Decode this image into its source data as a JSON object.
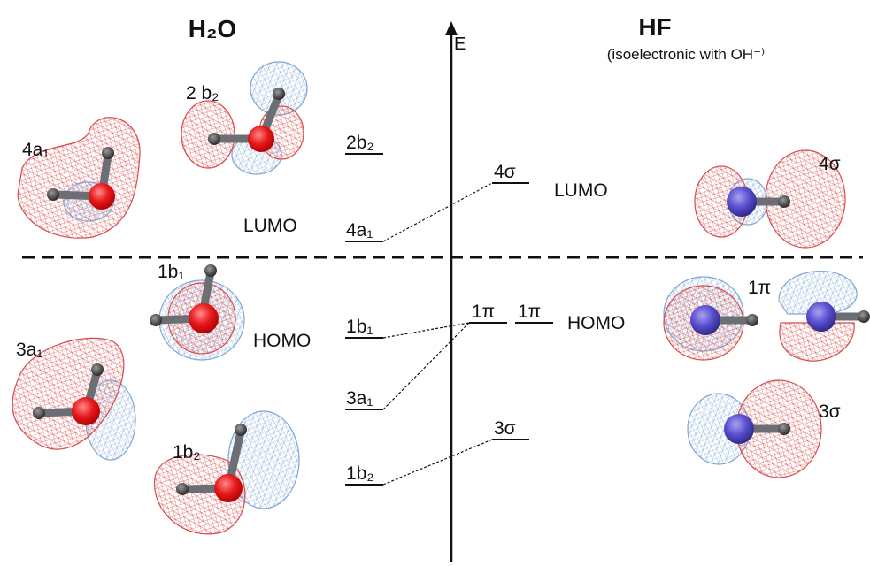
{
  "header": {
    "left_title": "H₂O",
    "right_title": "HF",
    "right_subtitle": "(isoelectronic with OH⁻⁾",
    "axis_label": "E"
  },
  "left_levels": [
    "2b₂",
    "4a₁",
    "1b₁",
    "3a₁",
    "1b₂"
  ],
  "right_levels": [
    "4σ",
    "1π",
    "1π",
    "3σ"
  ],
  "left_pictures": [
    "4a₁",
    "2 b₂",
    "1b₁",
    "3a₁",
    "1b₂"
  ],
  "right_pictures": [
    "4σ",
    "1π",
    "3σ"
  ],
  "frontier": {
    "left_lumo": "LUMO",
    "left_homo": "HOMO",
    "right_lumo": "LUMO",
    "right_homo": "HOMO"
  }
}
